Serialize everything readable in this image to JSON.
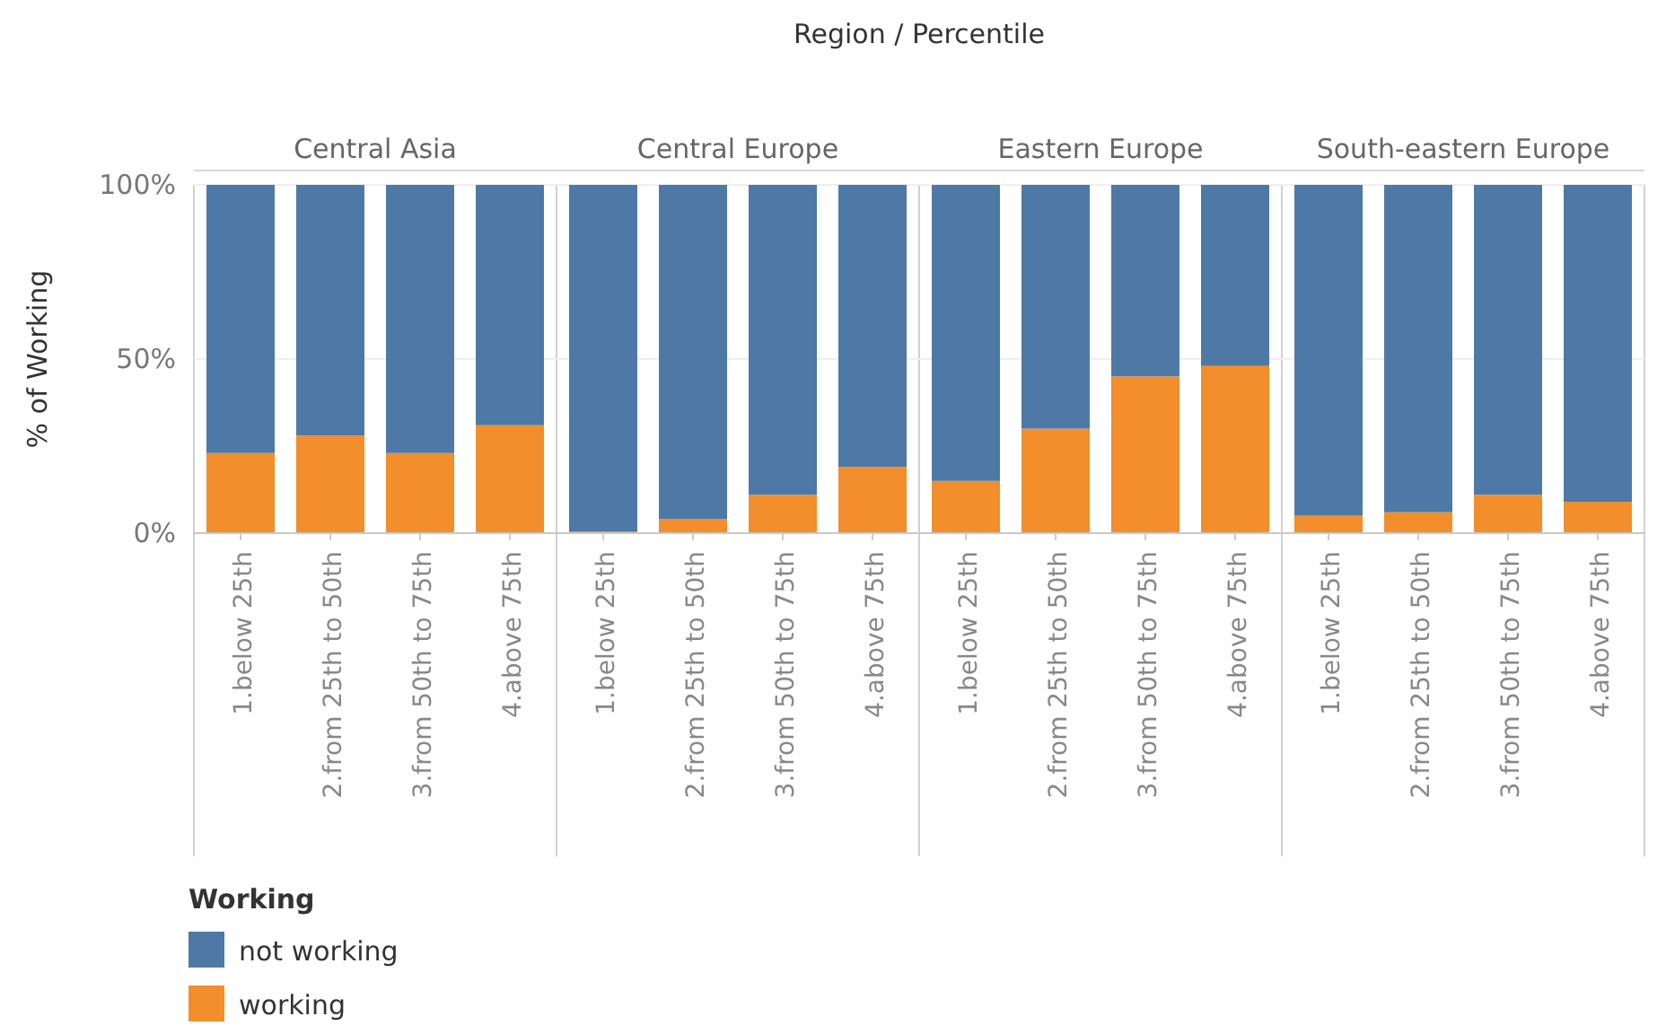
{
  "chart_data": [
    {
      "type": "bar",
      "title": "Central Asia",
      "ylabel": "% of Working",
      "annotations": [
        "Region / Percentile"
      ],
      "legend": "bottom left",
      "legend_title": "Working",
      "stacked": true,
      "grid": "y",
      "ylim": [
        0,
        100
      ],
      "yticks": [
        {
          "value": 0,
          "label": "0%"
        },
        {
          "value": 50,
          "label": "50%"
        },
        {
          "value": 100,
          "label": "100%"
        }
      ],
      "categories": [
        "1.below 25th",
        "2.from 25th to 50th",
        "3.from 50th to 75th",
        "4.above 75th"
      ],
      "series": [
        {
          "name": "working",
          "color": "#f28e2b",
          "values": [
            23,
            28,
            23,
            31
          ]
        },
        {
          "name": "not working",
          "color": "#4e79a7",
          "values": [
            77,
            72,
            77,
            69
          ]
        }
      ]
    },
    {
      "type": "bar",
      "title": "Central Europe",
      "tick_labels": "x",
      "stacked": true,
      "grid": "y",
      "ylim": [
        0,
        100
      ],
      "categories": [
        "1.below 25th",
        "2.from 25th to 50th",
        "3.from 50th to 75th",
        "4.above 75th"
      ],
      "series": [
        {
          "color": "#f28e2b",
          "values": [
            0.5,
            4,
            11,
            19
          ]
        },
        {
          "color": "#4e79a7",
          "values": [
            99.5,
            96,
            89,
            81
          ]
        }
      ]
    },
    {
      "type": "bar",
      "title": "Eastern Europe",
      "tick_labels": "x",
      "stacked": true,
      "grid": "y",
      "ylim": [
        0,
        100
      ],
      "categories": [
        "1.below 25th",
        "2.from 25th to 50th",
        "3.from 50th to 75th",
        "4.above 75th"
      ],
      "series": [
        {
          "color": "#f28e2b",
          "values": [
            15,
            30,
            45,
            48
          ]
        },
        {
          "color": "#4e79a7",
          "values": [
            85,
            70,
            55,
            52
          ]
        }
      ]
    },
    {
      "type": "bar",
      "title": "South-eastern Europe",
      "tick_labels": "x",
      "stacked": true,
      "grid": "y",
      "ylim": [
        0,
        100
      ],
      "categories": [
        "1.below 25th",
        "2.from 25th to 50th",
        "3.from 50th to 75th",
        "4.above 75th"
      ],
      "series": [
        {
          "color": "#f28e2b",
          "values": [
            5,
            6,
            11,
            9
          ]
        },
        {
          "color": "#4e79a7",
          "values": [
            95,
            94,
            89,
            91
          ]
        }
      ]
    }
  ]
}
